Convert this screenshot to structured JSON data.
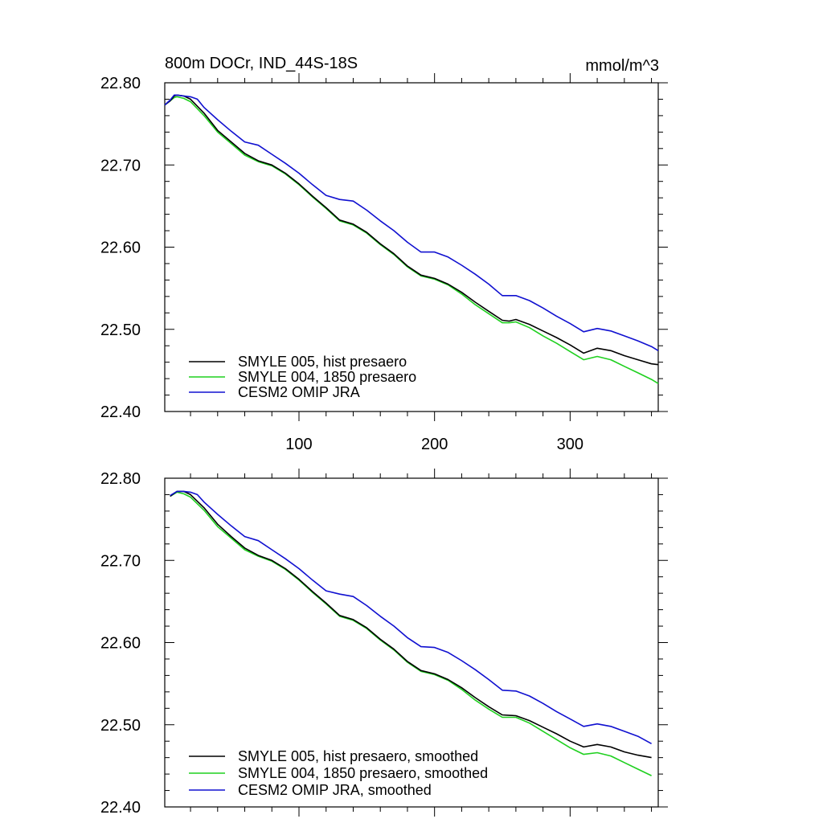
{
  "chart_data": [
    {
      "type": "line",
      "title_left": "800m DOCr, IND_44S-18S",
      "title_right": "mmol/m^3",
      "xlabel": "",
      "ylabel": "",
      "xlim": [
        1,
        365
      ],
      "ylim": [
        22.4,
        22.8
      ],
      "x_ticks": [
        100,
        200,
        300
      ],
      "x_tick_labels": [
        "100",
        "200",
        "300"
      ],
      "y_ticks": [
        22.4,
        22.5,
        22.6,
        22.7,
        22.8
      ],
      "y_tick_labels": [
        "22.40",
        "22.50",
        "22.60",
        "22.70",
        "22.80"
      ],
      "grid": false,
      "legend_position": "bottom-left",
      "series": [
        {
          "name": "SMYLE 005, hist presaero",
          "color": "#000000",
          "points": [
            [
              1,
              22.773
            ],
            [
              5,
              22.778
            ],
            [
              8,
              22.784
            ],
            [
              10,
              22.785
            ],
            [
              15,
              22.784
            ],
            [
              20,
              22.78
            ],
            [
              30,
              22.763
            ],
            [
              40,
              22.742
            ],
            [
              50,
              22.728
            ],
            [
              60,
              22.714
            ],
            [
              70,
              22.705
            ],
            [
              80,
              22.7
            ],
            [
              90,
              22.69
            ],
            [
              100,
              22.677
            ],
            [
              110,
              22.662
            ],
            [
              120,
              22.648
            ],
            [
              130,
              22.633
            ],
            [
              140,
              22.628
            ],
            [
              150,
              22.618
            ],
            [
              160,
              22.604
            ],
            [
              170,
              22.592
            ],
            [
              180,
              22.577
            ],
            [
              190,
              22.566
            ],
            [
              200,
              22.562
            ],
            [
              210,
              22.555
            ],
            [
              220,
              22.545
            ],
            [
              230,
              22.533
            ],
            [
              240,
              22.522
            ],
            [
              250,
              22.511
            ],
            [
              255,
              22.51
            ],
            [
              260,
              22.512
            ],
            [
              270,
              22.506
            ],
            [
              280,
              22.498
            ],
            [
              290,
              22.49
            ],
            [
              300,
              22.481
            ],
            [
              310,
              22.471
            ],
            [
              320,
              22.477
            ],
            [
              330,
              22.474
            ],
            [
              340,
              22.468
            ],
            [
              350,
              22.463
            ],
            [
              360,
              22.458
            ],
            [
              365,
              22.457
            ]
          ]
        },
        {
          "name": "SMYLE 004, 1850 presaero",
          "color": "#1fd01f",
          "points": [
            [
              1,
              22.773
            ],
            [
              5,
              22.778
            ],
            [
              8,
              22.782
            ],
            [
              10,
              22.783
            ],
            [
              15,
              22.781
            ],
            [
              20,
              22.777
            ],
            [
              30,
              22.76
            ],
            [
              40,
              22.74
            ],
            [
              50,
              22.726
            ],
            [
              60,
              22.712
            ],
            [
              70,
              22.704
            ],
            [
              80,
              22.699
            ],
            [
              90,
              22.689
            ],
            [
              100,
              22.676
            ],
            [
              110,
              22.661
            ],
            [
              120,
              22.647
            ],
            [
              130,
              22.632
            ],
            [
              140,
              22.627
            ],
            [
              150,
              22.617
            ],
            [
              160,
              22.603
            ],
            [
              170,
              22.591
            ],
            [
              180,
              22.576
            ],
            [
              190,
              22.565
            ],
            [
              200,
              22.561
            ],
            [
              210,
              22.554
            ],
            [
              220,
              22.543
            ],
            [
              230,
              22.53
            ],
            [
              240,
              22.519
            ],
            [
              250,
              22.508
            ],
            [
              255,
              22.508
            ],
            [
              260,
              22.509
            ],
            [
              270,
              22.502
            ],
            [
              280,
              22.492
            ],
            [
              290,
              22.483
            ],
            [
              300,
              22.473
            ],
            [
              310,
              22.463
            ],
            [
              320,
              22.467
            ],
            [
              330,
              22.463
            ],
            [
              340,
              22.455
            ],
            [
              350,
              22.447
            ],
            [
              360,
              22.439
            ],
            [
              365,
              22.434
            ]
          ]
        },
        {
          "name": "CESM2 OMIP JRA",
          "color": "#1010d0",
          "points": [
            [
              1,
              22.773
            ],
            [
              5,
              22.779
            ],
            [
              8,
              22.785
            ],
            [
              10,
              22.785
            ],
            [
              15,
              22.784
            ],
            [
              20,
              22.783
            ],
            [
              25,
              22.78
            ],
            [
              30,
              22.77
            ],
            [
              40,
              22.755
            ],
            [
              50,
              22.741
            ],
            [
              60,
              22.728
            ],
            [
              70,
              22.724
            ],
            [
              80,
              22.713
            ],
            [
              90,
              22.702
            ],
            [
              100,
              22.69
            ],
            [
              110,
              22.676
            ],
            [
              120,
              22.663
            ],
            [
              130,
              22.658
            ],
            [
              140,
              22.656
            ],
            [
              150,
              22.645
            ],
            [
              160,
              22.632
            ],
            [
              170,
              22.62
            ],
            [
              180,
              22.606
            ],
            [
              190,
              22.594
            ],
            [
              200,
              22.594
            ],
            [
              210,
              22.588
            ],
            [
              220,
              22.578
            ],
            [
              230,
              22.567
            ],
            [
              240,
              22.555
            ],
            [
              250,
              22.541
            ],
            [
              260,
              22.541
            ],
            [
              270,
              22.535
            ],
            [
              280,
              22.526
            ],
            [
              290,
              22.516
            ],
            [
              300,
              22.507
            ],
            [
              310,
              22.497
            ],
            [
              320,
              22.501
            ],
            [
              330,
              22.498
            ],
            [
              340,
              22.492
            ],
            [
              350,
              22.486
            ],
            [
              360,
              22.479
            ],
            [
              365,
              22.474
            ]
          ]
        }
      ]
    },
    {
      "type": "line",
      "title_left": "",
      "title_right": "",
      "xlabel": "",
      "ylabel": "",
      "xlim": [
        1,
        365
      ],
      "ylim": [
        22.4,
        22.8
      ],
      "x_ticks": [
        100,
        200,
        300
      ],
      "x_tick_labels": [],
      "y_ticks": [
        22.4,
        22.5,
        22.6,
        22.7,
        22.8
      ],
      "y_tick_labels": [
        "22.40",
        "22.50",
        "22.60",
        "22.70",
        "22.80"
      ],
      "grid": false,
      "legend_position": "bottom-left",
      "series": [
        {
          "name": "SMYLE 005, hist presaero, smoothed",
          "color": "#000000",
          "points": [
            [
              5,
              22.778
            ],
            [
              10,
              22.784
            ],
            [
              15,
              22.784
            ],
            [
              20,
              22.78
            ],
            [
              30,
              22.764
            ],
            [
              40,
              22.744
            ],
            [
              50,
              22.729
            ],
            [
              60,
              22.715
            ],
            [
              70,
              22.706
            ],
            [
              80,
              22.7
            ],
            [
              90,
              22.69
            ],
            [
              100,
              22.677
            ],
            [
              110,
              22.662
            ],
            [
              120,
              22.648
            ],
            [
              130,
              22.633
            ],
            [
              140,
              22.628
            ],
            [
              150,
              22.618
            ],
            [
              160,
              22.604
            ],
            [
              170,
              22.592
            ],
            [
              180,
              22.577
            ],
            [
              190,
              22.566
            ],
            [
              200,
              22.562
            ],
            [
              210,
              22.555
            ],
            [
              220,
              22.545
            ],
            [
              230,
              22.533
            ],
            [
              240,
              22.522
            ],
            [
              250,
              22.512
            ],
            [
              260,
              22.511
            ],
            [
              270,
              22.505
            ],
            [
              280,
              22.497
            ],
            [
              290,
              22.489
            ],
            [
              300,
              22.48
            ],
            [
              310,
              22.473
            ],
            [
              320,
              22.476
            ],
            [
              330,
              22.473
            ],
            [
              340,
              22.467
            ],
            [
              350,
              22.463
            ],
            [
              360,
              22.46
            ]
          ]
        },
        {
          "name": "SMYLE 004, 1850 presaero, smoothed",
          "color": "#1fd01f",
          "points": [
            [
              5,
              22.778
            ],
            [
              10,
              22.783
            ],
            [
              15,
              22.781
            ],
            [
              20,
              22.777
            ],
            [
              30,
              22.761
            ],
            [
              40,
              22.741
            ],
            [
              50,
              22.727
            ],
            [
              60,
              22.713
            ],
            [
              70,
              22.705
            ],
            [
              80,
              22.699
            ],
            [
              90,
              22.689
            ],
            [
              100,
              22.676
            ],
            [
              110,
              22.661
            ],
            [
              120,
              22.647
            ],
            [
              130,
              22.632
            ],
            [
              140,
              22.627
            ],
            [
              150,
              22.617
            ],
            [
              160,
              22.603
            ],
            [
              170,
              22.591
            ],
            [
              180,
              22.576
            ],
            [
              190,
              22.565
            ],
            [
              200,
              22.561
            ],
            [
              210,
              22.554
            ],
            [
              220,
              22.543
            ],
            [
              230,
              22.53
            ],
            [
              240,
              22.519
            ],
            [
              250,
              22.509
            ],
            [
              260,
              22.509
            ],
            [
              270,
              22.502
            ],
            [
              280,
              22.492
            ],
            [
              290,
              22.482
            ],
            [
              300,
              22.472
            ],
            [
              310,
              22.464
            ],
            [
              320,
              22.466
            ],
            [
              330,
              22.462
            ],
            [
              340,
              22.454
            ],
            [
              350,
              22.446
            ],
            [
              360,
              22.438
            ]
          ]
        },
        {
          "name": "CESM2 OMIP JRA, smoothed",
          "color": "#1010d0",
          "points": [
            [
              5,
              22.779
            ],
            [
              10,
              22.784
            ],
            [
              15,
              22.784
            ],
            [
              20,
              22.783
            ],
            [
              25,
              22.78
            ],
            [
              30,
              22.771
            ],
            [
              40,
              22.756
            ],
            [
              50,
              22.742
            ],
            [
              60,
              22.729
            ],
            [
              70,
              22.724
            ],
            [
              80,
              22.713
            ],
            [
              90,
              22.702
            ],
            [
              100,
              22.69
            ],
            [
              110,
              22.676
            ],
            [
              120,
              22.663
            ],
            [
              130,
              22.659
            ],
            [
              140,
              22.656
            ],
            [
              150,
              22.645
            ],
            [
              160,
              22.632
            ],
            [
              170,
              22.62
            ],
            [
              180,
              22.606
            ],
            [
              190,
              22.595
            ],
            [
              200,
              22.594
            ],
            [
              210,
              22.588
            ],
            [
              220,
              22.578
            ],
            [
              230,
              22.567
            ],
            [
              240,
              22.555
            ],
            [
              250,
              22.542
            ],
            [
              260,
              22.541
            ],
            [
              270,
              22.535
            ],
            [
              280,
              22.526
            ],
            [
              290,
              22.516
            ],
            [
              300,
              22.507
            ],
            [
              310,
              22.498
            ],
            [
              320,
              22.501
            ],
            [
              330,
              22.498
            ],
            [
              340,
              22.492
            ],
            [
              350,
              22.486
            ],
            [
              360,
              22.477
            ]
          ]
        }
      ]
    }
  ]
}
